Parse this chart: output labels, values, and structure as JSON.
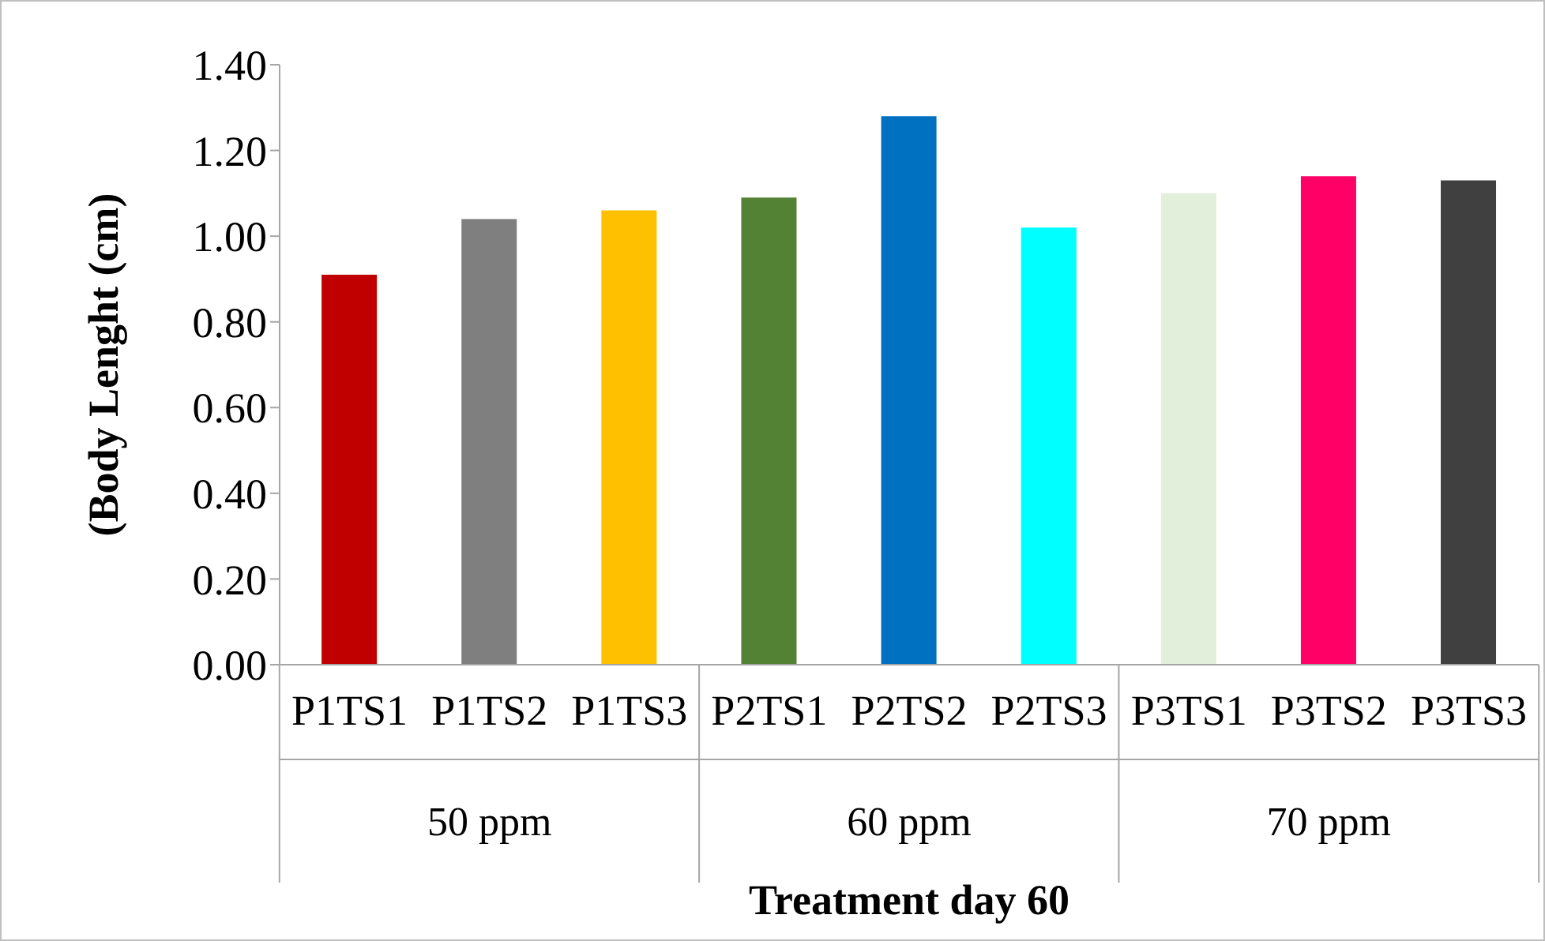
{
  "chart_data": {
    "type": "bar",
    "xlabel": "Treatment day 60",
    "ylabel": "(Body Lenght (cm)",
    "categories": [
      "P1TS1",
      "P1TS2",
      "P1TS3",
      "P2TS1",
      "P2TS2",
      "P2TS3",
      "P3TS1",
      "P3TS2",
      "P3TS3"
    ],
    "values": [
      0.91,
      1.04,
      1.06,
      1.09,
      1.28,
      1.02,
      1.1,
      1.14,
      1.13
    ],
    "colors": [
      "#c00000",
      "#7f7f7f",
      "#ffc000",
      "#548235",
      "#0070c0",
      "#00ffff",
      "#e2efda",
      "#ff0066",
      "#404040"
    ],
    "ylim": [
      0,
      1.4
    ],
    "yticks": [
      {
        "value": 0,
        "label": "0.00"
      },
      {
        "value": 0.2,
        "label": "0.20"
      },
      {
        "value": 0.4,
        "label": "0.40"
      },
      {
        "value": 0.6,
        "label": "0.60"
      },
      {
        "value": 0.8,
        "label": "0.80"
      },
      {
        "value": 1,
        "label": "1.00"
      },
      {
        "value": 1.2,
        "label": "1.20"
      },
      {
        "value": 1.4,
        "label": "1.40"
      }
    ],
    "annotations": [
      "50 ppm",
      "60 ppm",
      "70 ppm"
    ],
    "grid": false,
    "legend": false
  }
}
